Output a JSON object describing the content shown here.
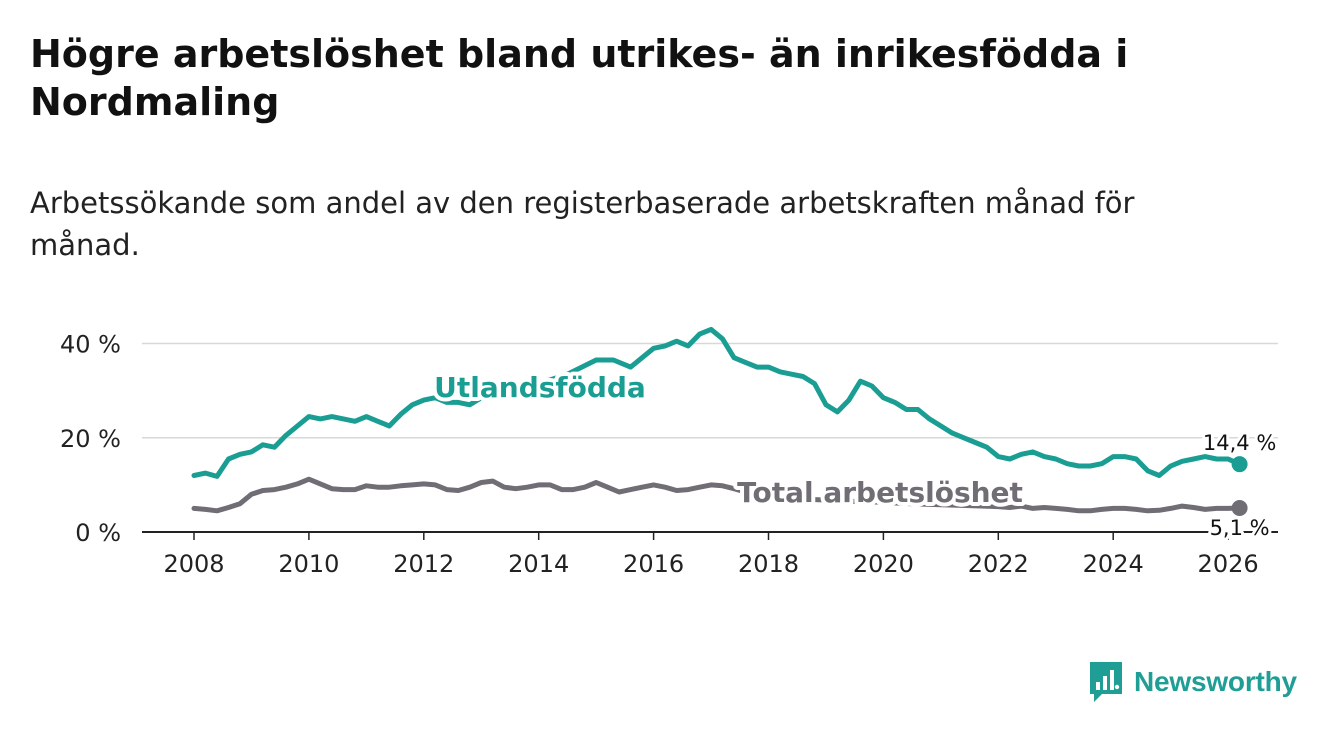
{
  "title": "Högre arbetslöshet bland utrikes- än inrikesfödda i Nordmaling",
  "subtitle": "Arbetssökande som andel av den registerbaserade arbetskraften månad för månad.",
  "brand": {
    "name": "Newsworthy",
    "color": "#1f9e95"
  },
  "chart_data": {
    "type": "line",
    "x_unit": "year",
    "ylim": [
      0,
      45
    ],
    "xlim": [
      2007.5,
      2027
    ],
    "y_ticks": [
      0,
      20,
      40
    ],
    "y_tick_labels": [
      "0 %",
      "20 %",
      "40 %"
    ],
    "x_ticks": [
      2008,
      2010,
      2012,
      2014,
      2016,
      2018,
      2020,
      2022,
      2024,
      2026
    ],
    "x_tick_labels": [
      "2008",
      "2010",
      "2012",
      "2014",
      "2016",
      "2018",
      "2020",
      "2022",
      "2024",
      "2026"
    ],
    "grid": true,
    "series": [
      {
        "name": "Utlandsfödda",
        "color": "#1a9e93",
        "end_label": "14,4 %",
        "x": [
          2008.0,
          2008.2,
          2008.4,
          2008.6,
          2008.8,
          2009.0,
          2009.2,
          2009.4,
          2009.6,
          2009.8,
          2010.0,
          2010.2,
          2010.4,
          2010.6,
          2010.8,
          2011.0,
          2011.2,
          2011.4,
          2011.6,
          2011.8,
          2012.0,
          2012.2,
          2012.4,
          2012.6,
          2012.8,
          2013.0,
          2013.5,
          2014.0,
          2014.5,
          2015.0,
          2015.3,
          2015.6,
          2015.8,
          2016.0,
          2016.2,
          2016.4,
          2016.6,
          2016.8,
          2017.0,
          2017.2,
          2017.4,
          2017.6,
          2017.8,
          2018.0,
          2018.2,
          2018.4,
          2018.6,
          2018.8,
          2019.0,
          2019.2,
          2019.4,
          2019.6,
          2019.8,
          2020.0,
          2020.2,
          2020.4,
          2020.6,
          2020.8,
          2021.0,
          2021.2,
          2021.4,
          2021.6,
          2021.8,
          2022.0,
          2022.2,
          2022.4,
          2022.6,
          2022.8,
          2023.0,
          2023.2,
          2023.4,
          2023.6,
          2023.8,
          2024.0,
          2024.2,
          2024.4,
          2024.6,
          2024.8,
          2025.0,
          2025.2,
          2025.4,
          2025.6,
          2025.8,
          2026.0,
          2026.2
        ],
        "values": [
          12,
          12.5,
          11.8,
          15.5,
          16.5,
          17,
          18.5,
          18,
          20.5,
          22.5,
          24.5,
          24,
          24.5,
          24,
          23.5,
          24.5,
          23.5,
          22.5,
          25,
          27,
          28,
          28.5,
          27.5,
          27.5,
          27,
          28.5,
          30,
          31.5,
          33.5,
          36.5,
          36.5,
          35,
          37,
          39,
          39.5,
          40.5,
          39.5,
          42,
          43,
          41,
          37,
          36,
          35,
          35,
          34,
          33.5,
          33,
          31.5,
          27,
          25.5,
          28,
          32,
          31,
          28.5,
          27.5,
          26,
          26,
          24,
          22.5,
          21,
          20,
          19,
          18,
          16,
          15.5,
          16.5,
          17,
          16,
          15.5,
          14.5,
          14,
          14,
          14.5,
          16,
          16,
          15.5,
          13,
          12,
          14,
          15,
          15.5,
          16,
          15.5,
          15.5,
          14.4
        ]
      },
      {
        "name": "Total arbetslöshet",
        "color": "#706d75",
        "end_label": "5,1 %",
        "x": [
          2008.0,
          2008.2,
          2008.4,
          2008.6,
          2008.8,
          2009.0,
          2009.2,
          2009.4,
          2009.6,
          2009.8,
          2010.0,
          2010.2,
          2010.4,
          2010.6,
          2010.8,
          2011.0,
          2011.2,
          2011.4,
          2011.6,
          2011.8,
          2012.0,
          2012.2,
          2012.4,
          2012.6,
          2012.8,
          2013.0,
          2013.2,
          2013.4,
          2013.6,
          2013.8,
          2014.0,
          2014.2,
          2014.4,
          2014.6,
          2014.8,
          2015.0,
          2015.2,
          2015.4,
          2015.6,
          2015.8,
          2016.0,
          2016.2,
          2016.4,
          2016.6,
          2016.8,
          2017.0,
          2017.2,
          2017.4,
          2017.6,
          2017.8,
          2018.0,
          2018.5,
          2019.0,
          2019.5,
          2020.0,
          2020.5,
          2021.0,
          2021.5,
          2022.0,
          2022.2,
          2022.4,
          2022.6,
          2022.8,
          2023.0,
          2023.2,
          2023.4,
          2023.6,
          2023.8,
          2024.0,
          2024.2,
          2024.4,
          2024.6,
          2024.8,
          2025.0,
          2025.2,
          2025.4,
          2025.6,
          2025.8,
          2026.0,
          2026.2
        ],
        "values": [
          5,
          4.8,
          4.5,
          5.2,
          6,
          8,
          8.8,
          9,
          9.5,
          10.2,
          11.2,
          10.2,
          9.2,
          9,
          9,
          9.8,
          9.5,
          9.5,
          9.8,
          10,
          10.2,
          10,
          9,
          8.8,
          9.5,
          10.5,
          10.8,
          9.5,
          9.2,
          9.5,
          10,
          10,
          9,
          9,
          9.5,
          10.5,
          9.5,
          8.5,
          9,
          9.5,
          10,
          9.5,
          8.8,
          9,
          9.5,
          10,
          9.8,
          9.2,
          8.5,
          8,
          7.5,
          7,
          6.8,
          6.5,
          6.3,
          6,
          5.8,
          5.6,
          5.4,
          5.2,
          5.5,
          5,
          5.2,
          5,
          4.8,
          4.5,
          4.5,
          4.8,
          5,
          5,
          4.8,
          4.5,
          4.6,
          5,
          5.5,
          5.2,
          4.8,
          5,
          5,
          5.1
        ]
      }
    ]
  }
}
